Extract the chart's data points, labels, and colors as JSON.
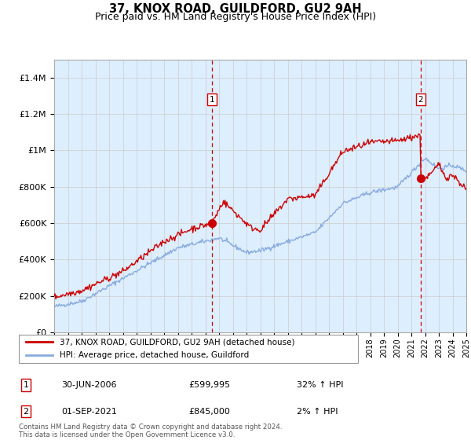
{
  "title": "37, KNOX ROAD, GUILDFORD, GU2 9AH",
  "subtitle": "Price paid vs. HM Land Registry's House Price Index (HPI)",
  "ylabel_ticks": [
    "£0",
    "£200K",
    "£400K",
    "£600K",
    "£800K",
    "£1M",
    "£1.2M",
    "£1.4M"
  ],
  "ytick_values": [
    0,
    200000,
    400000,
    600000,
    800000,
    1000000,
    1200000,
    1400000
  ],
  "ylim": [
    0,
    1500000
  ],
  "x_start_year": 1995,
  "x_end_year": 2025,
  "transaction1_date": 2006.5,
  "transaction1_label": "1",
  "transaction1_price": 599995,
  "transaction2_date": 2021.67,
  "transaction2_label": "2",
  "transaction2_price": 845000,
  "red_line_color": "#cc0000",
  "blue_line_color": "#88aadd",
  "grid_color": "#cccccc",
  "bg_color": "#ddeeff",
  "legend_line1": "37, KNOX ROAD, GUILDFORD, GU2 9AH (detached house)",
  "legend_line2": "HPI: Average price, detached house, Guildford",
  "footer": "Contains HM Land Registry data © Crown copyright and database right 2024.\nThis data is licensed under the Open Government Licence v3.0."
}
